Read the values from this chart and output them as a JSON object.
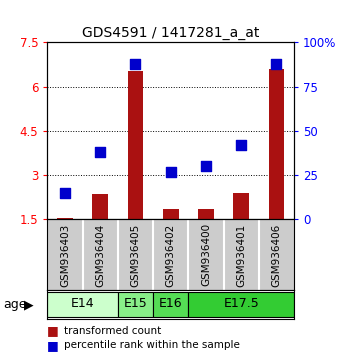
{
  "title": "GDS4591 / 1417281_a_at",
  "samples": [
    "GSM936403",
    "GSM936404",
    "GSM936405",
    "GSM936402",
    "GSM936400",
    "GSM936401",
    "GSM936406"
  ],
  "transformed_count": [
    1.55,
    2.35,
    6.55,
    1.85,
    1.85,
    2.4,
    6.6
  ],
  "percentile_rank": [
    15,
    38,
    88,
    27,
    30,
    42,
    88
  ],
  "ylim_left": [
    1.5,
    7.5
  ],
  "ylim_right": [
    0,
    100
  ],
  "yticks_left": [
    1.5,
    3.0,
    4.5,
    6.0,
    7.5
  ],
  "yticks_right": [
    0,
    25,
    50,
    75,
    100
  ],
  "ytick_labels_left": [
    "1.5",
    "3",
    "4.5",
    "6",
    "7.5"
  ],
  "ytick_labels_right": [
    "0",
    "25",
    "50",
    "75",
    "100%"
  ],
  "bar_color": "#aa1111",
  "dot_color": "#0000cc",
  "bar_width": 0.45,
  "dot_size": 55,
  "bg_sample": "#cccccc",
  "bg_age_e14": "#ccffcc",
  "bg_age_e15": "#88ee88",
  "bg_age_e16": "#55dd55",
  "bg_age_e175": "#33cc33",
  "age_groups": [
    {
      "label": "E14",
      "start": 0,
      "end": 1,
      "color": "#ccffcc"
    },
    {
      "label": "E15",
      "start": 2,
      "end": 2,
      "color": "#88ee88"
    },
    {
      "label": "E16",
      "start": 3,
      "end": 3,
      "color": "#55dd55"
    },
    {
      "label": "E17.5",
      "start": 4,
      "end": 6,
      "color": "#33cc33"
    }
  ]
}
